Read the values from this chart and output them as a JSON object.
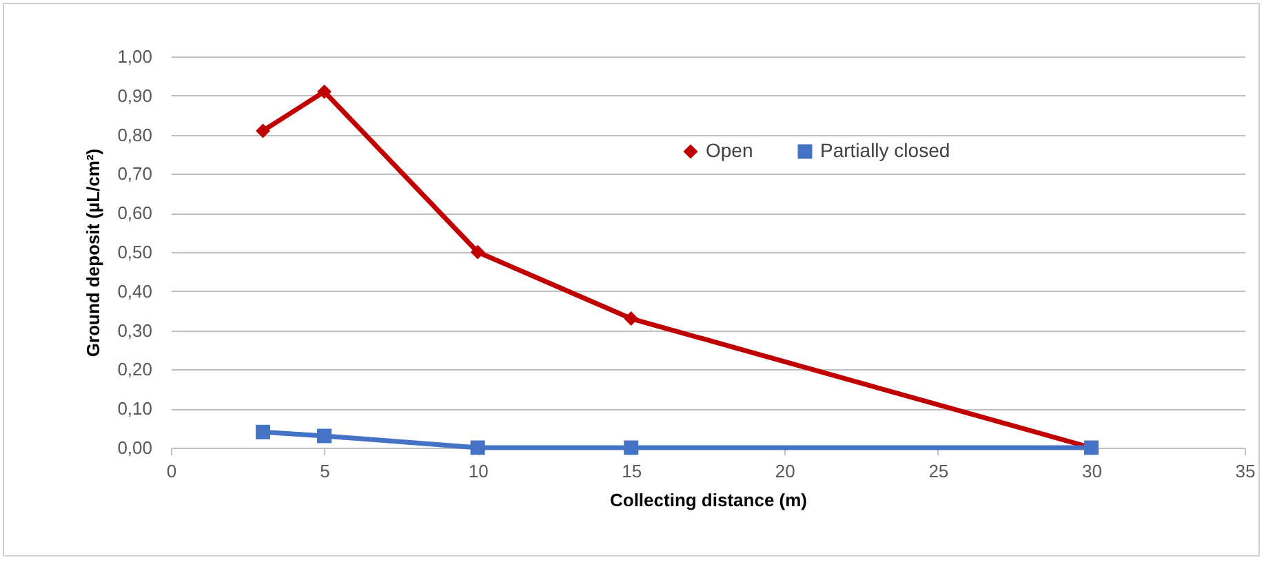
{
  "chart_data": {
    "type": "line",
    "xlabel": "Collecting distance (m)",
    "ylabel": "Ground deposit (µL/cm²)",
    "xlim": [
      0,
      35
    ],
    "xticks": [
      0,
      5,
      10,
      15,
      20,
      25,
      30,
      35
    ],
    "ylim": [
      0,
      1
    ],
    "yticks": [
      {
        "value": 0,
        "label": "0,00"
      },
      {
        "value": 0.1,
        "label": "0,10"
      },
      {
        "value": 0.2,
        "label": "0,20"
      },
      {
        "value": 0.3,
        "label": "0,30"
      },
      {
        "value": 0.4,
        "label": "0,40"
      },
      {
        "value": 0.5,
        "label": "0,50"
      },
      {
        "value": 0.6,
        "label": "0,60"
      },
      {
        "value": 0.7,
        "label": "0,70"
      },
      {
        "value": 0.8,
        "label": "0,80"
      },
      {
        "value": 0.9,
        "label": "0,90"
      },
      {
        "value": 1,
        "label": "1,00"
      }
    ],
    "x": [
      3,
      5,
      10,
      15,
      30
    ],
    "series": [
      {
        "name": "Open",
        "color": "#c00000",
        "marker": "diamond",
        "values": [
          0.81,
          0.91,
          0.5,
          0.33,
          0
        ]
      },
      {
        "name": "Partially closed",
        "color": "#4472c4",
        "marker": "square",
        "values": [
          0.04,
          0.03,
          0,
          0,
          0
        ]
      }
    ],
    "grid": "y",
    "legend": "top right",
    "line_style": "solid"
  }
}
